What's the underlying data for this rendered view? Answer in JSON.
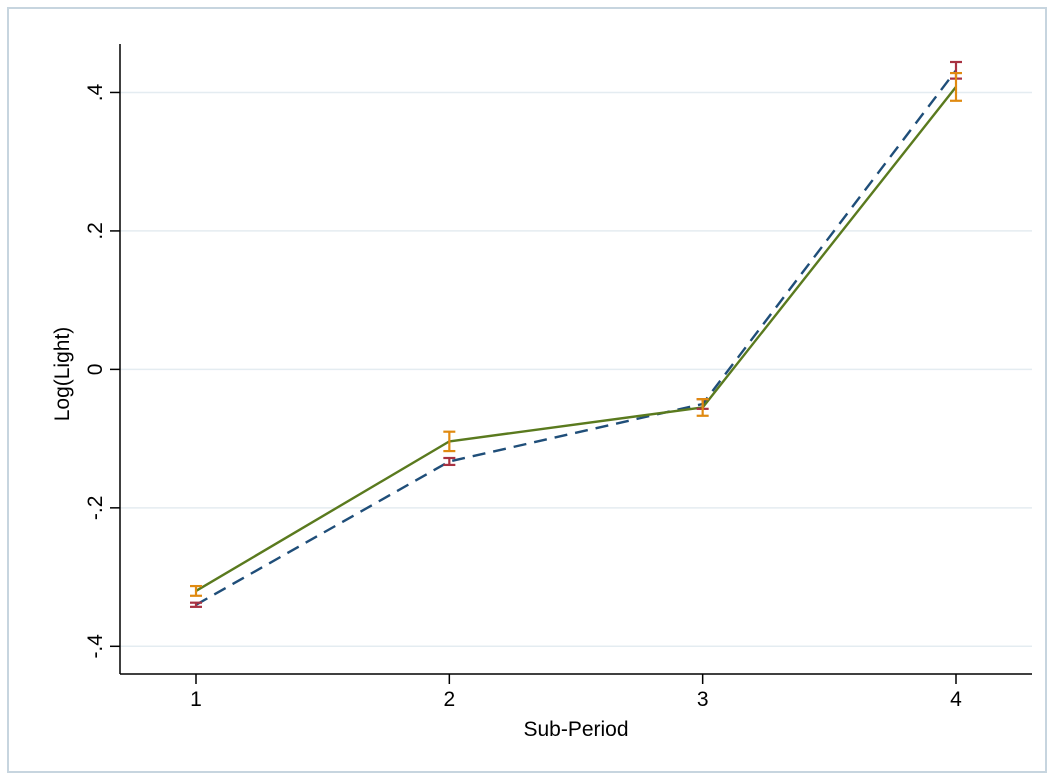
{
  "chart_data": {
    "type": "line",
    "title": "",
    "xlabel": "Sub-Period",
    "ylabel": "Log(Light)",
    "x": [
      1,
      2,
      3,
      4
    ],
    "x_tick_labels": [
      "1",
      "2",
      "3",
      "4"
    ],
    "y_ticks": [
      -0.4,
      -0.2,
      0,
      0.2,
      0.4
    ],
    "y_tick_labels": [
      "-.4",
      "-.2",
      "0",
      ".2",
      ".4"
    ],
    "xlim": [
      0.7,
      4.3
    ],
    "ylim": [
      -0.44,
      0.47
    ],
    "grid": "horizontal",
    "series": [
      {
        "style": "dashed",
        "color": "#1f4e79",
        "ci_color": "#a83242",
        "values": [
          -0.34,
          -0.133,
          -0.05,
          0.432
        ],
        "ci_low": [
          -0.343,
          -0.138,
          -0.057,
          0.42
        ],
        "ci_high": [
          -0.337,
          -0.128,
          -0.043,
          0.444
        ]
      },
      {
        "style": "solid",
        "color": "#5a7a1e",
        "ci_color": "#e08a10",
        "values": [
          -0.32,
          -0.104,
          -0.055,
          0.408
        ],
        "ci_low": [
          -0.327,
          -0.118,
          -0.067,
          0.388
        ],
        "ci_high": [
          -0.313,
          -0.09,
          -0.043,
          0.428
        ]
      }
    ]
  }
}
